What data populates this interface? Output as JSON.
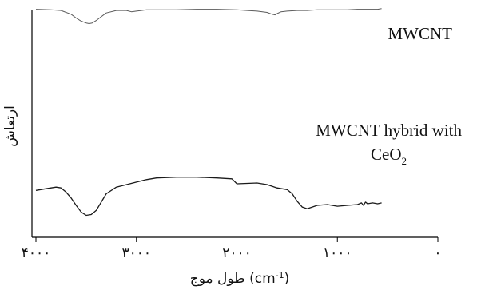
{
  "chart_data": {
    "type": "line",
    "title": "",
    "xlabel_prefix": "طول موج (cm",
    "xlabel_sup": "-1",
    "xlabel_suffix": ")",
    "ylabel": "ارتعاش",
    "xlim": [
      4000,
      0
    ],
    "x_reversed": true,
    "xticks": [
      4000,
      3000,
      2000,
      1000,
      0
    ],
    "xtick_labels": [
      "۴۰۰۰",
      "۳۰۰۰",
      "۲۰۰۰",
      "۱۰۰۰",
      "۰"
    ],
    "yticks_shown": false,
    "ylim": [
      0,
      100
    ],
    "grid": false,
    "series": [
      {
        "name": "MWCNT",
        "annotation": "MWCNT",
        "color": "#5a5a5a",
        "x": [
          4000,
          3850,
          3750,
          3650,
          3600,
          3550,
          3500,
          3470,
          3440,
          3400,
          3350,
          3300,
          3200,
          3100,
          3050,
          3000,
          2950,
          2900,
          2800,
          2600,
          2400,
          2200,
          2000,
          1900,
          1800,
          1700,
          1650,
          1620,
          1600,
          1560,
          1500,
          1400,
          1300,
          1200,
          1100,
          1000,
          900,
          800,
          700,
          600,
          560
        ],
        "y": [
          98,
          97,
          96,
          90,
          84,
          79,
          76,
          75,
          76,
          80,
          86,
          92,
          96,
          96,
          94,
          95,
          96,
          97,
          97,
          97,
          98,
          98,
          97,
          96,
          95,
          93,
          90,
          89,
          91,
          94,
          95,
          96,
          96,
          97,
          97,
          97,
          97,
          98,
          98,
          98,
          99
        ]
      },
      {
        "name": "MWCNT hybrid with CeO2",
        "annotation_line1": "MWCNT hybrid with",
        "annotation_line2_main": "CeO",
        "annotation_line2_sub": "2",
        "color": "#1a1a1a",
        "x": [
          4000,
          3900,
          3800,
          3750,
          3700,
          3650,
          3600,
          3550,
          3500,
          3450,
          3400,
          3350,
          3300,
          3200,
          3000,
          2900,
          2800,
          2600,
          2400,
          2200,
          2050,
          2000,
          1800,
          1700,
          1600,
          1500,
          1450,
          1400,
          1350,
          1300,
          1250,
          1200,
          1100,
          1000,
          900,
          800,
          760,
          740,
          720,
          700,
          650,
          600,
          560
        ],
        "y": [
          42,
          44,
          46,
          45,
          40,
          33,
          24,
          16,
          12,
          13,
          18,
          28,
          38,
          46,
          52,
          55,
          57,
          58,
          58,
          57,
          56,
          50,
          51,
          49,
          45,
          43,
          38,
          29,
          22,
          20,
          22,
          24,
          25,
          23,
          24,
          25,
          27,
          24,
          28,
          26,
          27,
          26,
          27
        ]
      }
    ]
  }
}
